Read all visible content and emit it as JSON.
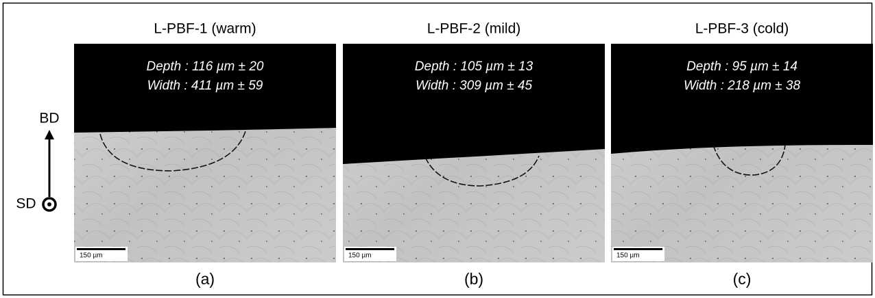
{
  "axes": {
    "up": "BD",
    "out": "SD"
  },
  "panels": [
    {
      "title": "L-PBF-1 (warm)",
      "depth": "Depth : 116 µm ± 20",
      "width": "Width : 411 µm ± 59",
      "scale_bar": "150 µm",
      "caption": "(a)"
    },
    {
      "title": "L-PBF-2 (mild)",
      "depth": "Depth : 105 µm ± 13",
      "width": "Width : 309 µm ± 45",
      "scale_bar": "150 µm",
      "caption": "(b)"
    },
    {
      "title": "L-PBF-3 (cold)",
      "depth": "Depth : 95 µm ± 14",
      "width": "Width : 218 µm ± 38",
      "scale_bar": "150 µm",
      "caption": "(c)"
    }
  ]
}
